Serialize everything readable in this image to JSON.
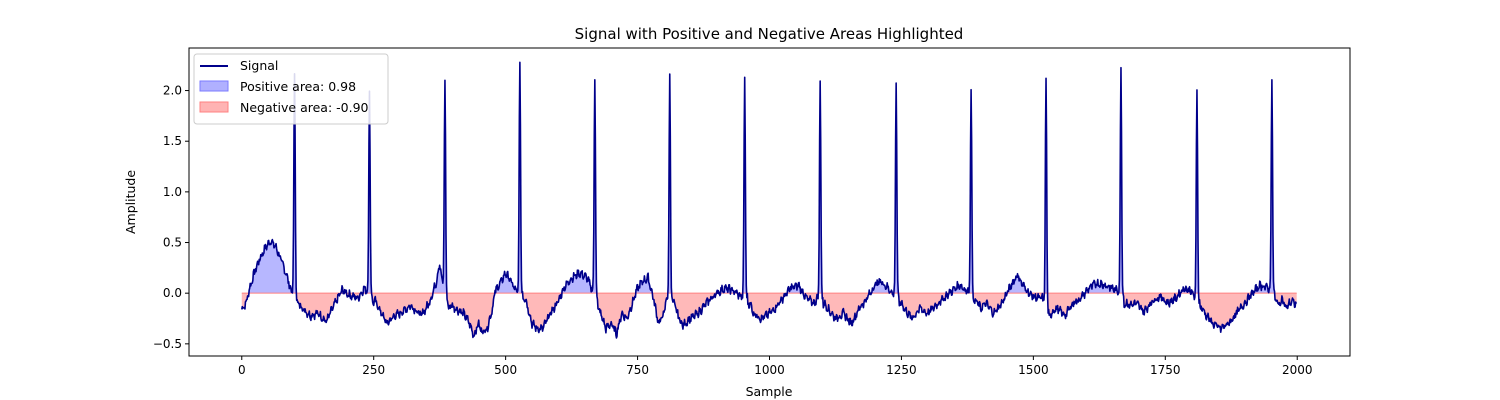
{
  "chart_data": {
    "type": "area",
    "title": "Signal with Positive and Negative Areas Highlighted",
    "xlabel": "Sample",
    "ylabel": "Amplitude",
    "xlim": [
      -100,
      2100
    ],
    "ylim": [
      -0.62,
      2.42
    ],
    "xticks": [
      0,
      250,
      500,
      750,
      1000,
      1250,
      1500,
      1750,
      2000
    ],
    "yticks": [
      -0.5,
      0.0,
      0.5,
      1.0,
      1.5,
      2.0
    ],
    "ytick_labels": [
      "−0.5",
      "0.0",
      "0.5",
      "1.0",
      "1.5",
      "2.0"
    ],
    "grid": false,
    "legend_position": "top-left",
    "colors": {
      "signal": "#00008b",
      "positive_fill": "#7b7bff",
      "negative_fill": "#ff8080"
    },
    "series": [
      {
        "name": "Signal",
        "kind": "line"
      },
      {
        "name": "Positive area: 0.98",
        "kind": "fill"
      },
      {
        "name": "Negative area: -0.90",
        "kind": "fill"
      }
    ],
    "signal": {
      "n_samples": 2000,
      "peak_positions": [
        100,
        242,
        385,
        527,
        669,
        811,
        953,
        1096,
        1240,
        1382,
        1524,
        1666,
        1810,
        1952
      ],
      "peak_heights": [
        2.17,
        1.99,
        2.1,
        2.3,
        2.12,
        2.13,
        2.13,
        2.09,
        2.09,
        2.04,
        2.11,
        2.22,
        2.0,
        2.11
      ],
      "baseline_points": [
        [
          0,
          -0.16
        ],
        [
          8,
          -0.1
        ],
        [
          15,
          0.05
        ],
        [
          25,
          0.22
        ],
        [
          35,
          0.35
        ],
        [
          45,
          0.45
        ],
        [
          55,
          0.52
        ],
        [
          65,
          0.45
        ],
        [
          75,
          0.32
        ],
        [
          85,
          0.18
        ],
        [
          92,
          0.05
        ],
        [
          97,
          0.0
        ],
        [
          105,
          -0.05
        ],
        [
          115,
          -0.15
        ],
        [
          130,
          -0.22
        ],
        [
          145,
          -0.2
        ],
        [
          160,
          -0.28
        ],
        [
          175,
          -0.12
        ],
        [
          190,
          0.03
        ],
        [
          205,
          -0.02
        ],
        [
          220,
          -0.05
        ],
        [
          232,
          0.05
        ],
        [
          238,
          0.02
        ],
        [
          250,
          -0.05
        ],
        [
          260,
          -0.15
        ],
        [
          275,
          -0.3
        ],
        [
          290,
          -0.22
        ],
        [
          300,
          -0.2
        ],
        [
          320,
          -0.12
        ],
        [
          340,
          -0.22
        ],
        [
          355,
          -0.1
        ],
        [
          368,
          0.1
        ],
        [
          375,
          0.3
        ],
        [
          380,
          0.1
        ],
        [
          392,
          -0.1
        ],
        [
          405,
          -0.15
        ],
        [
          420,
          -0.2
        ],
        [
          430,
          -0.28
        ],
        [
          440,
          -0.42
        ],
        [
          448,
          -0.3
        ],
        [
          455,
          -0.38
        ],
        [
          465,
          -0.35
        ],
        [
          475,
          -0.15
        ],
        [
          480,
          0.02
        ],
        [
          490,
          0.1
        ],
        [
          500,
          0.2
        ],
        [
          510,
          0.12
        ],
        [
          519,
          0.02
        ],
        [
          535,
          0.0
        ],
        [
          540,
          -0.1
        ],
        [
          550,
          -0.3
        ],
        [
          560,
          -0.35
        ],
        [
          570,
          -0.35
        ],
        [
          585,
          -0.2
        ],
        [
          600,
          -0.08
        ],
        [
          610,
          0.05
        ],
        [
          625,
          0.15
        ],
        [
          640,
          0.2
        ],
        [
          655,
          0.15
        ],
        [
          662,
          0.05
        ],
        [
          672,
          -0.02
        ],
        [
          680,
          -0.2
        ],
        [
          690,
          -0.35
        ],
        [
          700,
          -0.3
        ],
        [
          710,
          -0.4
        ],
        [
          720,
          -0.2
        ],
        [
          730,
          -0.25
        ],
        [
          740,
          -0.1
        ],
        [
          750,
          0.05
        ],
        [
          760,
          0.12
        ],
        [
          770,
          0.15
        ],
        [
          780,
          -0.05
        ],
        [
          790,
          -0.3
        ],
        [
          800,
          -0.2
        ],
        [
          805,
          -0.05
        ],
        [
          818,
          -0.05
        ],
        [
          825,
          -0.2
        ],
        [
          835,
          -0.32
        ],
        [
          850,
          -0.25
        ],
        [
          865,
          -0.2
        ],
        [
          880,
          -0.1
        ],
        [
          890,
          -0.05
        ],
        [
          900,
          0.0
        ],
        [
          915,
          0.05
        ],
        [
          930,
          0.03
        ],
        [
          945,
          -0.03
        ],
        [
          960,
          -0.05
        ],
        [
          970,
          -0.2
        ],
        [
          985,
          -0.25
        ],
        [
          1000,
          -0.2
        ],
        [
          1010,
          -0.15
        ],
        [
          1025,
          -0.05
        ],
        [
          1040,
          0.05
        ],
        [
          1055,
          0.08
        ],
        [
          1070,
          -0.05
        ],
        [
          1085,
          -0.1
        ],
        [
          1090,
          -0.05
        ],
        [
          1102,
          -0.05
        ],
        [
          1110,
          -0.15
        ],
        [
          1125,
          -0.25
        ],
        [
          1140,
          -0.2
        ],
        [
          1155,
          -0.3
        ],
        [
          1170,
          -0.15
        ],
        [
          1185,
          -0.05
        ],
        [
          1200,
          0.08
        ],
        [
          1210,
          0.12
        ],
        [
          1225,
          0.05
        ],
        [
          1233,
          0.0
        ],
        [
          1247,
          -0.05
        ],
        [
          1255,
          -0.15
        ],
        [
          1270,
          -0.25
        ],
        [
          1285,
          -0.15
        ],
        [
          1300,
          -0.2
        ],
        [
          1315,
          -0.12
        ],
        [
          1330,
          -0.05
        ],
        [
          1345,
          0.02
        ],
        [
          1360,
          0.08
        ],
        [
          1375,
          0.02
        ],
        [
          1390,
          -0.05
        ],
        [
          1400,
          -0.15
        ],
        [
          1410,
          -0.1
        ],
        [
          1425,
          -0.2
        ],
        [
          1440,
          -0.1
        ],
        [
          1450,
          0.0
        ],
        [
          1460,
          0.1
        ],
        [
          1470,
          0.18
        ],
        [
          1480,
          0.08
        ],
        [
          1495,
          -0.02
        ],
        [
          1510,
          -0.05
        ],
        [
          1517,
          -0.05
        ],
        [
          1530,
          -0.2
        ],
        [
          1545,
          -0.15
        ],
        [
          1560,
          -0.22
        ],
        [
          1575,
          -0.1
        ],
        [
          1590,
          -0.05
        ],
        [
          1605,
          0.05
        ],
        [
          1620,
          0.1
        ],
        [
          1635,
          0.08
        ],
        [
          1650,
          0.05
        ],
        [
          1660,
          0.02
        ],
        [
          1672,
          -0.05
        ],
        [
          1680,
          -0.12
        ],
        [
          1695,
          -0.1
        ],
        [
          1710,
          -0.18
        ],
        [
          1725,
          -0.08
        ],
        [
          1740,
          -0.03
        ],
        [
          1755,
          -0.1
        ],
        [
          1770,
          -0.05
        ],
        [
          1785,
          0.05
        ],
        [
          1800,
          0.02
        ],
        [
          1805,
          -0.05
        ],
        [
          1815,
          -0.08
        ],
        [
          1825,
          -0.2
        ],
        [
          1840,
          -0.3
        ],
        [
          1855,
          -0.35
        ],
        [
          1870,
          -0.3
        ],
        [
          1885,
          -0.2
        ],
        [
          1900,
          -0.1
        ],
        [
          1915,
          0.0
        ],
        [
          1930,
          0.08
        ],
        [
          1945,
          0.05
        ],
        [
          1959,
          -0.02
        ],
        [
          1965,
          -0.12
        ],
        [
          1972,
          -0.05
        ],
        [
          1978,
          -0.15
        ],
        [
          1985,
          -0.1
        ],
        [
          1990,
          -0.08
        ],
        [
          1999,
          -0.12
        ]
      ]
    }
  }
}
